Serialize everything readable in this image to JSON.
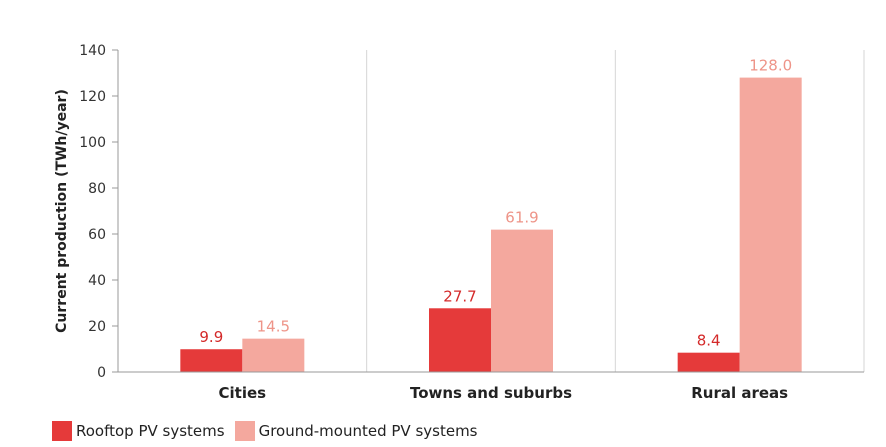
{
  "chart_data": {
    "type": "bar",
    "ylabel": "Current production (TWh/year)",
    "xlabel": "",
    "ylim": [
      0,
      140
    ],
    "yticks": [
      0,
      20,
      40,
      60,
      80,
      100,
      120,
      140
    ],
    "categories": [
      "Cities",
      "Towns and suburbs",
      "Rural areas"
    ],
    "series": [
      {
        "name": "Rooftop PV systems",
        "values": [
          9.9,
          27.7,
          8.4
        ],
        "labels": [
          "9.9",
          "27.7",
          "8.4"
        ],
        "color": "#e53a3a",
        "label_color": "#d42a2a"
      },
      {
        "name": "Ground-mounted PV systems",
        "values": [
          14.5,
          61.9,
          128.0
        ],
        "labels": [
          "14.5",
          "61.9",
          "128.0"
        ],
        "color": "#f4a89e",
        "label_color": "#ee9488"
      }
    ],
    "grid": "vertical category separators",
    "legend_position": "bottom-left"
  }
}
